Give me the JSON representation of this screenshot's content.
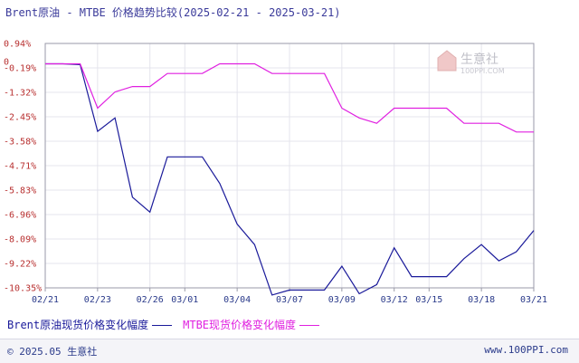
{
  "chart_data": {
    "type": "line",
    "title": "Brent原油 - MTBE 价格趋势比较(2025-02-21 - 2025-03-21)",
    "y_ticks": [
      "0.94%",
      "-0.19%",
      "-1.32%",
      "-2.45%",
      "-3.58%",
      "-4.71%",
      "-5.83%",
      "-6.96%",
      "-8.09%",
      "-9.22%",
      "-10.35%"
    ],
    "y_axis_zero_label": "0",
    "ylim": [
      -10.35,
      0.94
    ],
    "x_ticks": [
      "02/21",
      "02/23",
      "02/26",
      "03/01",
      "03/04",
      "03/07",
      "03/09",
      "03/12",
      "03/15",
      "03/18",
      "03/21"
    ],
    "x_dates": [
      "2025-02-21",
      "2025-02-22",
      "2025-02-23",
      "2025-02-24",
      "2025-02-25",
      "2025-02-26",
      "2025-02-27",
      "2025-02-28",
      "2025-03-01",
      "2025-03-02",
      "2025-03-03",
      "2025-03-04",
      "2025-03-05",
      "2025-03-06",
      "2025-03-07",
      "2025-03-08",
      "2025-03-09",
      "2025-03-10",
      "2025-03-11",
      "2025-03-12",
      "2025-03-13",
      "2025-03-14",
      "2025-03-15",
      "2025-03-16",
      "2025-03-17",
      "2025-03-18",
      "2025-03-19",
      "2025-03-20",
      "2025-03-21"
    ],
    "grid": true,
    "legend_position": "bottom-left",
    "series": [
      {
        "name": "Brent原油现货价格变化幅度",
        "color": "#1a1a9a",
        "values": [
          0,
          0,
          -0.04,
          -3.12,
          -2.5,
          -6.16,
          -6.85,
          -4.3,
          -4.3,
          -4.3,
          -5.53,
          -7.4,
          -8.35,
          -10.68,
          -10.45,
          -10.45,
          -10.45,
          -9.35,
          -10.62,
          -10.2,
          -8.5,
          -9.83,
          -9.83,
          -9.83,
          -9.0,
          -8.35,
          -9.1,
          -8.68,
          -7.7
        ],
        "note": ""
      },
      {
        "name": "MTBE现货价格变化幅度",
        "color": "#e020e0",
        "values": [
          0,
          0,
          0,
          -2.05,
          -1.3,
          -1.05,
          -1.05,
          -0.45,
          -0.45,
          -0.45,
          0,
          0,
          0,
          -0.45,
          -0.45,
          -0.45,
          -0.45,
          -2.05,
          -2.5,
          -2.75,
          -2.05,
          -2.05,
          -2.05,
          -2.05,
          -2.75,
          -2.75,
          -2.75,
          -3.15,
          -3.15
        ]
      }
    ]
  },
  "watermark": {
    "text": "生意社",
    "subtext": "100PPI.COM"
  },
  "footer": {
    "left": "© 2025.05 生意社",
    "right": "www.100PPI.com"
  }
}
